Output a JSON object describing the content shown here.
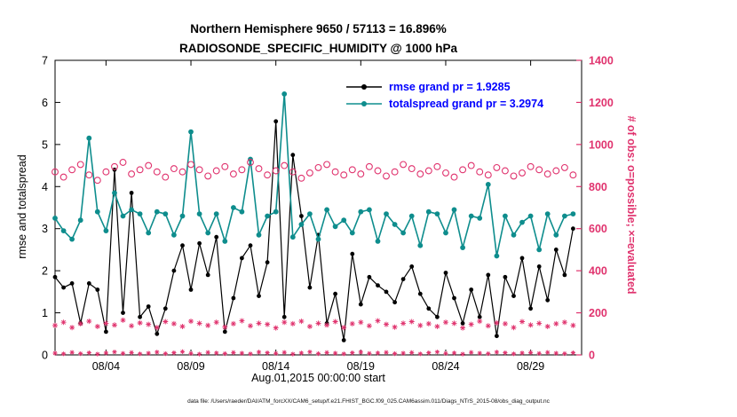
{
  "chart_data": {
    "type": "line",
    "title": "Northern Hemisphere 9650 / 57113 = 16.896%",
    "subtitle": "RADIOSONDE_SPECIFIC_HUMIDITY @ 1000 hPa",
    "xlabel": "Aug.01,2015 00:00:00 start",
    "ylabel_left": "rmse and totalspread",
    "ylabel_right": "# of obs: o=possible; ×=evaluated",
    "ylim_left": [
      0,
      7
    ],
    "ylim_right": [
      0,
      1400
    ],
    "yticks_left": [
      0,
      1,
      2,
      3,
      4,
      5,
      6,
      7
    ],
    "yticks_right": [
      0,
      200,
      400,
      600,
      800,
      1000,
      1200,
      1400
    ],
    "x_span_days": 31,
    "x_step_days": 0.5,
    "xticks": [
      {
        "day": 3,
        "label": "08/04"
      },
      {
        "day": 8,
        "label": "08/09"
      },
      {
        "day": 13,
        "label": "08/14"
      },
      {
        "day": 18,
        "label": "08/19"
      },
      {
        "day": 23,
        "label": "08/24"
      },
      {
        "day": 28,
        "label": "08/29"
      }
    ],
    "colors": {
      "black": "#000000",
      "teal": "#0e8d8d",
      "pink": "#e0336e",
      "legend_text": "#0000ff"
    },
    "legend_text_color": "#0000ff",
    "legend": [
      {
        "label": "rmse grand pr = 1.9285",
        "color": "#000000"
      },
      {
        "label": "totalspread grand pr = 3.2974",
        "color": "#0e8d8d"
      }
    ],
    "series": [
      {
        "name": "rmse",
        "axis": "left",
        "color": "#000000",
        "marker": "filled-circle",
        "marker_size": 2.4,
        "line": true,
        "line_width": 1.2,
        "values": [
          1.85,
          1.6,
          1.7,
          0.75,
          1.7,
          1.55,
          0.55,
          4.4,
          1.0,
          3.85,
          0.9,
          1.15,
          0.5,
          1.1,
          2.0,
          2.6,
          1.55,
          2.65,
          1.9,
          2.8,
          0.55,
          1.35,
          2.3,
          2.6,
          1.4,
          2.2,
          5.55,
          0.9,
          4.75,
          3.3,
          1.6,
          2.85,
          0.75,
          1.45,
          0.35,
          2.4,
          1.2,
          1.85,
          1.65,
          1.5,
          1.25,
          1.8,
          2.1,
          1.45,
          1.1,
          0.9,
          1.95,
          1.35,
          0.75,
          1.55,
          0.9,
          1.9,
          0.45,
          1.85,
          1.4,
          2.3,
          1.1,
          2.1,
          1.3,
          2.5,
          1.9,
          3.0
        ]
      },
      {
        "name": "totalspread",
        "axis": "left",
        "color": "#0e8d8d",
        "marker": "filled-circle",
        "marker_size": 2.9,
        "line": true,
        "line_width": 1.6,
        "values": [
          3.25,
          2.95,
          2.75,
          3.2,
          5.15,
          3.4,
          2.95,
          3.85,
          3.3,
          3.45,
          3.35,
          2.9,
          3.4,
          3.35,
          2.85,
          3.3,
          5.3,
          3.35,
          2.9,
          3.35,
          2.7,
          3.5,
          3.4,
          4.65,
          2.85,
          3.3,
          3.4,
          6.2,
          2.8,
          3.1,
          3.35,
          2.75,
          3.45,
          3.05,
          3.2,
          2.9,
          3.4,
          3.45,
          2.7,
          3.35,
          3.1,
          2.9,
          3.3,
          2.6,
          3.4,
          3.35,
          2.9,
          3.45,
          2.55,
          3.3,
          3.25,
          4.05,
          2.35,
          3.3,
          2.85,
          3.15,
          3.3,
          2.5,
          3.35,
          2.85,
          3.3,
          3.35
        ]
      },
      {
        "name": "possible_obs",
        "axis": "right",
        "color": "#e0336e",
        "marker": "open-circle",
        "marker_size": 3.4,
        "line": false,
        "line_width": 0,
        "values": [
          870,
          845,
          880,
          905,
          855,
          830,
          870,
          895,
          915,
          860,
          880,
          900,
          870,
          845,
          885,
          870,
          905,
          880,
          850,
          875,
          895,
          860,
          880,
          915,
          885,
          855,
          875,
          900,
          870,
          840,
          865,
          890,
          905,
          870,
          855,
          880,
          860,
          895,
          875,
          850,
          870,
          905,
          885,
          860,
          875,
          895,
          865,
          845,
          880,
          900,
          870,
          855,
          890,
          875,
          850,
          865,
          895,
          880,
          860,
          875,
          890,
          855
        ]
      },
      {
        "name": "evaluated_obs",
        "axis": "right",
        "color": "#e0336e",
        "marker": "asterisk",
        "marker_size": 3.0,
        "line": false,
        "line_width": 0,
        "values": [
          140,
          155,
          130,
          148,
          160,
          135,
          150,
          142,
          165,
          138,
          152,
          145,
          130,
          158,
          148,
          135,
          160,
          150,
          140,
          155,
          132,
          148,
          162,
          138,
          150,
          145,
          128,
          155,
          148,
          160,
          135,
          150,
          142,
          158,
          130,
          148,
          155,
          138,
          162,
          145,
          132,
          150,
          158,
          140,
          148,
          135,
          155,
          150,
          128,
          145,
          160,
          138,
          152,
          148,
          130,
          158,
          142,
          150,
          135,
          148,
          155,
          140
        ]
      },
      {
        "name": "near_zero_obs",
        "axis": "right",
        "color": "#e0336e",
        "marker": "asterisk",
        "marker_size": 2.6,
        "line": false,
        "line_width": 0,
        "values": [
          8,
          5,
          12,
          6,
          10,
          4,
          9,
          14,
          7,
          11,
          5,
          8,
          13,
          6,
          10,
          15,
          7,
          4,
          12,
          9,
          6,
          11,
          8,
          5,
          13,
          10,
          7,
          12,
          4,
          9,
          14,
          6,
          11,
          8,
          5,
          10,
          13,
          7,
          9,
          12,
          6,
          8,
          11,
          5,
          10,
          14,
          7,
          9,
          4,
          12,
          8,
          6,
          13,
          10,
          5,
          9,
          11,
          7,
          12,
          8,
          6,
          10
        ]
      }
    ]
  },
  "footer": {
    "datafile": "data file: /Users/raeder/DAI/ATM_forcXX/CAM6_setup/f.e21.FHIST_BGC.f09_025.CAM6assim.011/Diags_NTrS_2015-08/obs_diag_output.nc"
  }
}
